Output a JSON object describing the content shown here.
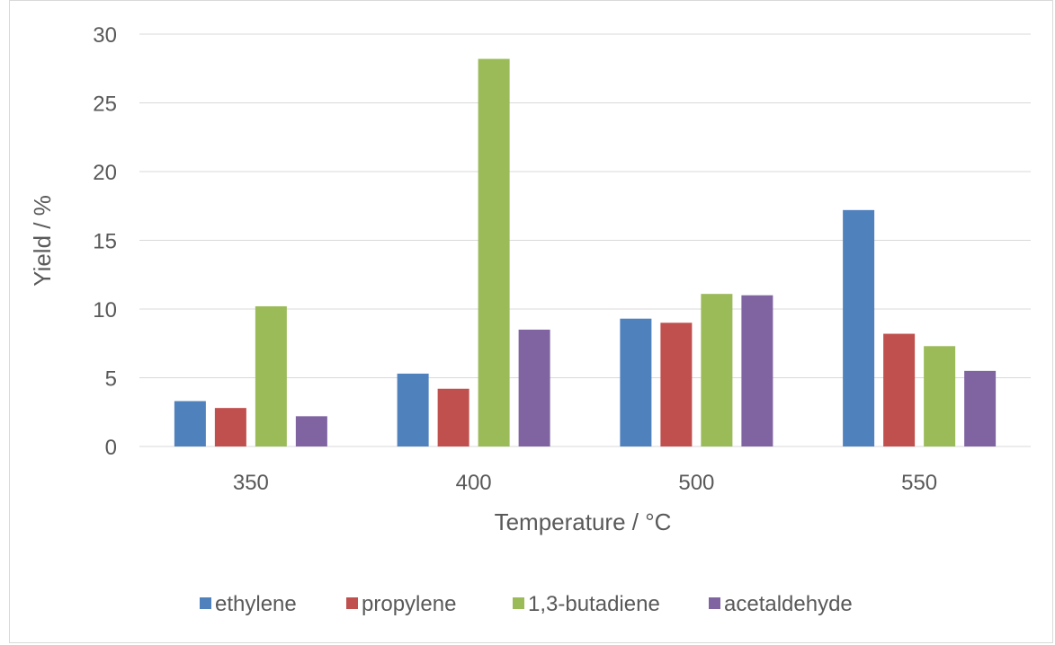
{
  "chart_data": {
    "type": "bar",
    "categories": [
      "350",
      "400",
      "500",
      "550"
    ],
    "series": [
      {
        "name": "ethylene",
        "color": "#4f81bd",
        "values": [
          3.3,
          5.3,
          9.3,
          17.2
        ]
      },
      {
        "name": "propylene",
        "color": "#c0504d",
        "values": [
          2.8,
          4.2,
          9.0,
          8.2
        ]
      },
      {
        "name": "1,3-butadiene",
        "color": "#9bbb59",
        "values": [
          10.2,
          28.2,
          11.1,
          7.3
        ]
      },
      {
        "name": "acetaldehyde",
        "color": "#8064a2",
        "values": [
          2.2,
          8.5,
          11.0,
          5.5
        ]
      }
    ],
    "xlabel": "Temperature / °C",
    "ylabel": "Yield / %",
    "ylim": [
      0,
      30
    ],
    "yticks": [
      "0",
      "5",
      "10",
      "15",
      "20",
      "25",
      "30"
    ],
    "grid": true,
    "legend": "bottom"
  }
}
